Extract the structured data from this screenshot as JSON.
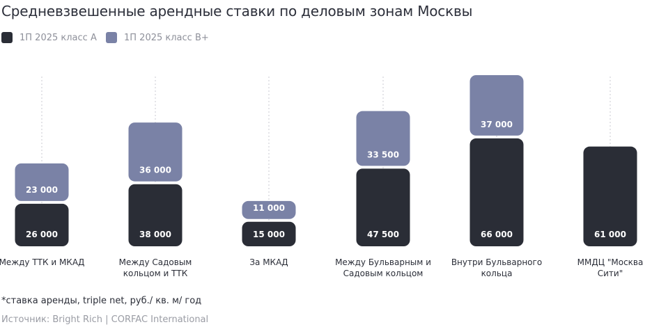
{
  "header": {
    "title": "Средневзвешенные арендные ставки по деловым зонам Москвы"
  },
  "legend": [
    {
      "label": "1П 2025 класс А",
      "color": "#2a2d36"
    },
    {
      "label": "1П 2025 класс В+",
      "color": "#7a82a6"
    }
  ],
  "chart_data": {
    "type": "bar",
    "stacked": true,
    "title": "Средневзвешенные арендные ставки по деловым зонам Москвы",
    "categories": [
      "Между ТТК и МКАД",
      "Между Садовым кольцом и ТТК",
      "За МКАД",
      "Между Бульварным и Садовым кольцом",
      "Внутри Бульварного кольца",
      "ММДЦ \"Москва Сити\""
    ],
    "category_lines": [
      [
        "Между ТТК и МКАД"
      ],
      [
        "Между Садовым",
        "кольцом и ТТК"
      ],
      [
        "За МКАД"
      ],
      [
        "Между Бульварным и",
        "Садовым кольцом"
      ],
      [
        "Внутри Бульварного",
        "кольца"
      ],
      [
        "ММДЦ \"Москва",
        "Сити\""
      ]
    ],
    "series": [
      {
        "name": "1П 2025 класс А",
        "color": "#2a2d36",
        "values": [
          26000,
          38000,
          15000,
          47500,
          66000,
          61000
        ],
        "labels": [
          "26 000",
          "38 000",
          "15 000",
          "47 500",
          "66 000",
          "61 000"
        ]
      },
      {
        "name": "1П 2025 класс В+",
        "color": "#7a82a6",
        "values": [
          23000,
          36000,
          11000,
          33500,
          37000,
          null
        ],
        "labels": [
          "23 000",
          "36 000",
          "11 000",
          "33 500",
          "37 000",
          null
        ]
      }
    ],
    "legend_position": "top-left",
    "grid": false
  },
  "footer": {
    "note": "*ставка аренды, triple net, руб./ кв. м/ год",
    "source": "Источник: Bright Rich | CORFAC International"
  }
}
